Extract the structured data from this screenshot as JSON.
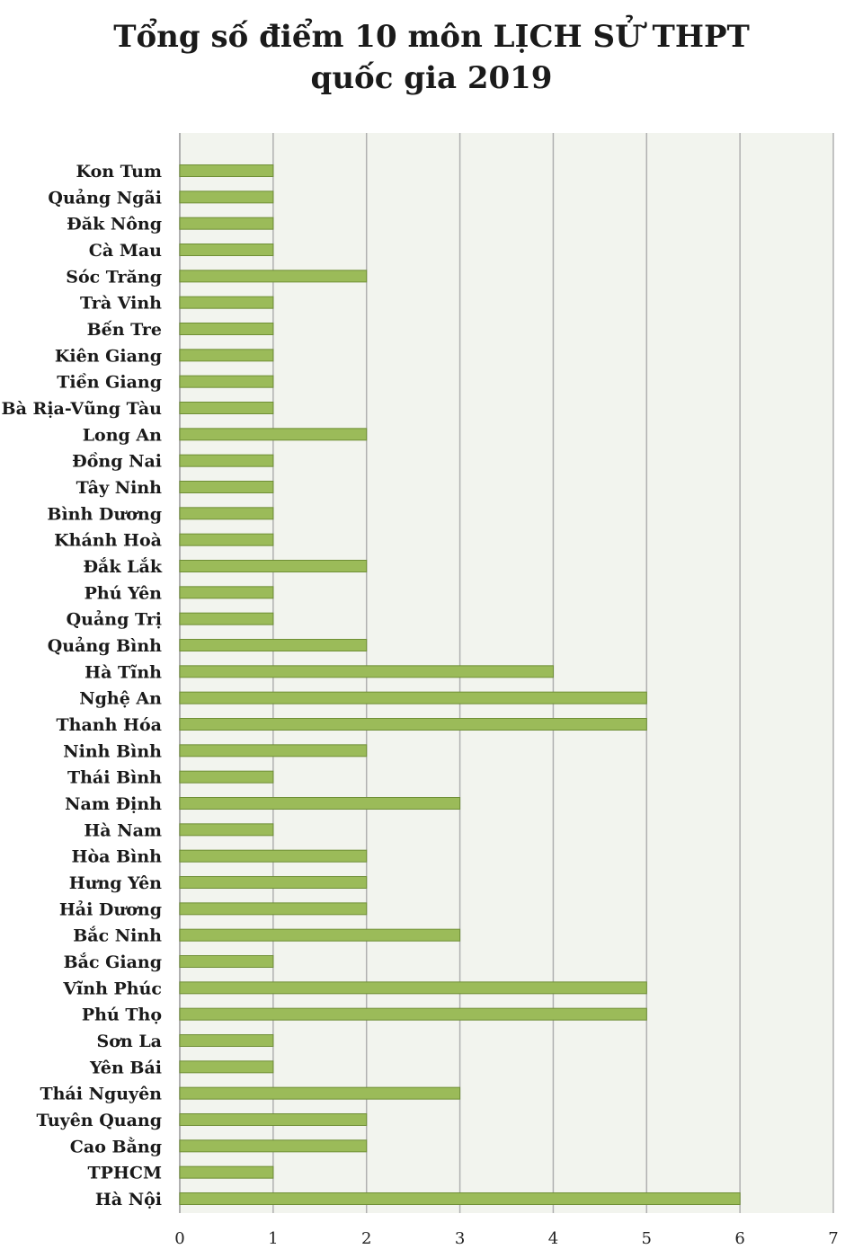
{
  "chart_data": {
    "type": "bar",
    "orientation": "horizontal",
    "title": "Tổng số điểm 10 môn LỊCH SỬ THPT",
    "subtitle": "quốc gia 2019",
    "xlabel": "",
    "ylabel": "",
    "xlim": [
      0,
      7
    ],
    "x_ticks": [
      0,
      1,
      2,
      3,
      4,
      5,
      6,
      7
    ],
    "grid": true,
    "legend": "none",
    "categories": [
      "Kon Tum",
      "Quảng Ngãi",
      "Đăk Nông",
      "Cà Mau",
      "Sóc Trăng",
      "Trà Vinh",
      "Bến Tre",
      "Kiên Giang",
      "Tiền Giang",
      "Bà Rịa-Vũng Tàu",
      "Long An",
      "Đồng Nai",
      "Tây Ninh",
      "Bình Dương",
      "Khánh Hoà",
      "Đắk Lắk",
      "Phú Yên",
      "Quảng Trị",
      "Quảng Bình",
      "Hà Tĩnh",
      "Nghệ An",
      "Thanh Hóa",
      "Ninh Bình",
      "Thái Bình",
      "Nam Định",
      "Hà Nam",
      "Hòa Bình",
      "Hưng Yên",
      "Hải Dương",
      "Bắc Ninh",
      "Bắc Giang",
      "Vĩnh Phúc",
      "Phú Thọ",
      "Sơn La",
      "Yên Bái",
      "Thái Nguyên",
      "Tuyên Quang",
      "Cao Bằng",
      "TPHCM",
      "Hà Nội"
    ],
    "values": [
      1,
      1,
      1,
      1,
      2,
      1,
      1,
      1,
      1,
      1,
      2,
      1,
      1,
      1,
      1,
      2,
      1,
      1,
      2,
      4,
      5,
      5,
      2,
      1,
      3,
      1,
      2,
      2,
      2,
      3,
      1,
      5,
      5,
      1,
      1,
      3,
      2,
      2,
      1,
      6
    ],
    "colors": {
      "bar_fill": "#9bbb59",
      "bar_stroke": "#6f8f36",
      "plot_background": "#f2f4ee",
      "gridline": "#b0b0b0"
    }
  }
}
